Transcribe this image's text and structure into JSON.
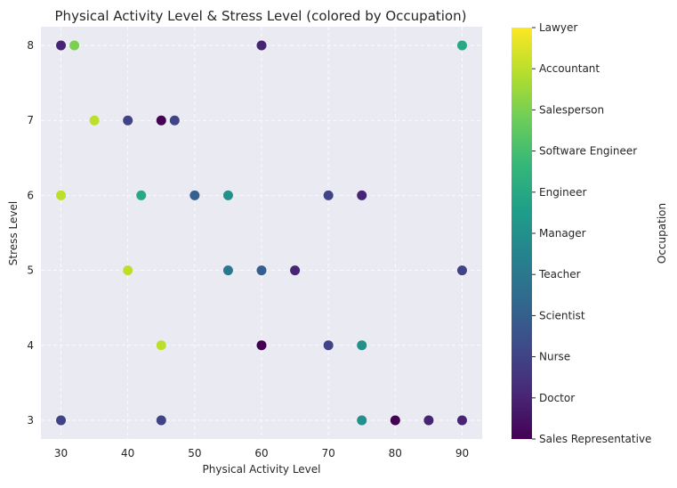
{
  "chart_data": {
    "type": "scatter",
    "title": "Physical Activity Level & Stress Level (colored by Occupation)",
    "xlabel": "Physical Activity Level",
    "ylabel": "Stress Level",
    "xlim": [
      27,
      93
    ],
    "ylim": [
      2.75,
      8.25
    ],
    "xticks": [
      30,
      40,
      50,
      60,
      70,
      80,
      90
    ],
    "yticks": [
      3,
      4,
      5,
      6,
      7,
      8
    ],
    "grid": true,
    "colorbar": {
      "label": "Occupation",
      "categories": [
        "Sales Representative",
        "Doctor",
        "Nurse",
        "Scientist",
        "Teacher",
        "Manager",
        "Engineer",
        "Software Engineer",
        "Salesperson",
        "Accountant",
        "Lawyer"
      ],
      "colormap": "viridis"
    },
    "points": [
      {
        "x": 30,
        "y": 8,
        "category": "Doctor"
      },
      {
        "x": 32,
        "y": 8,
        "category": "Salesperson"
      },
      {
        "x": 60,
        "y": 8,
        "category": "Doctor"
      },
      {
        "x": 90,
        "y": 8,
        "category": "Engineer"
      },
      {
        "x": 35,
        "y": 7,
        "category": "Accountant"
      },
      {
        "x": 40,
        "y": 7,
        "category": "Nurse"
      },
      {
        "x": 45,
        "y": 7,
        "category": "Sales Representative"
      },
      {
        "x": 47,
        "y": 7,
        "category": "Nurse"
      },
      {
        "x": 30,
        "y": 6,
        "category": "Accountant"
      },
      {
        "x": 42,
        "y": 6,
        "category": "Engineer"
      },
      {
        "x": 50,
        "y": 6,
        "category": "Scientist"
      },
      {
        "x": 55,
        "y": 6,
        "category": "Manager"
      },
      {
        "x": 70,
        "y": 6,
        "category": "Nurse"
      },
      {
        "x": 75,
        "y": 6,
        "category": "Doctor"
      },
      {
        "x": 40,
        "y": 5,
        "category": "Accountant"
      },
      {
        "x": 55,
        "y": 5,
        "category": "Teacher"
      },
      {
        "x": 60,
        "y": 5,
        "category": "Scientist"
      },
      {
        "x": 65,
        "y": 5,
        "category": "Doctor"
      },
      {
        "x": 90,
        "y": 5,
        "category": "Nurse"
      },
      {
        "x": 45,
        "y": 4,
        "category": "Accountant"
      },
      {
        "x": 60,
        "y": 4,
        "category": "Sales Representative"
      },
      {
        "x": 70,
        "y": 4,
        "category": "Nurse"
      },
      {
        "x": 75,
        "y": 4,
        "category": "Manager"
      },
      {
        "x": 30,
        "y": 3,
        "category": "Nurse"
      },
      {
        "x": 45,
        "y": 3,
        "category": "Nurse"
      },
      {
        "x": 75,
        "y": 3,
        "category": "Manager"
      },
      {
        "x": 80,
        "y": 3,
        "category": "Sales Representative"
      },
      {
        "x": 85,
        "y": 3,
        "category": "Doctor"
      },
      {
        "x": 90,
        "y": 3,
        "category": "Doctor"
      }
    ]
  }
}
